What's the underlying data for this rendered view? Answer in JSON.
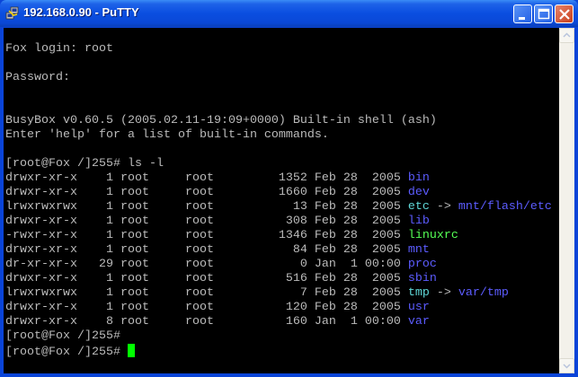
{
  "window": {
    "title": "192.168.0.90 - PuTTY"
  },
  "colors": {
    "text": "#bbbbbb",
    "dir": "#5c5cff",
    "link": "#5fd7d7",
    "exec": "#55ff55",
    "cursor": "#00ff00"
  },
  "terminal": {
    "lines": [
      [],
      [
        {
          "t": "Fox login: root"
        }
      ],
      [],
      [
        {
          "t": "Password:"
        }
      ],
      [],
      [],
      [
        {
          "t": "BusyBox v0.60.5 (2005.02.11-19:09+0000) Built-in shell (ash)"
        }
      ],
      [
        {
          "t": "Enter 'help' for a list of built-in commands."
        }
      ],
      [],
      [
        {
          "t": "[root@Fox /]255# ls -l"
        }
      ],
      [
        {
          "t": "drwxr-xr-x    1 root     root         1352 Feb 28  2005 "
        },
        {
          "t": "bin",
          "c": "dir"
        }
      ],
      [
        {
          "t": "drwxr-xr-x    1 root     root         1660 Feb 28  2005 "
        },
        {
          "t": "dev",
          "c": "dir"
        }
      ],
      [
        {
          "t": "lrwxrwxrwx    1 root     root           13 Feb 28  2005 "
        },
        {
          "t": "etc",
          "c": "link"
        },
        {
          "t": " -> "
        },
        {
          "t": "mnt/flash/etc",
          "c": "dir"
        }
      ],
      [
        {
          "t": "drwxr-xr-x    1 root     root          308 Feb 28  2005 "
        },
        {
          "t": "lib",
          "c": "dir"
        }
      ],
      [
        {
          "t": "-rwxr-xr-x    1 root     root         1346 Feb 28  2005 "
        },
        {
          "t": "linuxrc",
          "c": "exec"
        }
      ],
      [
        {
          "t": "drwxr-xr-x    1 root     root           84 Feb 28  2005 "
        },
        {
          "t": "mnt",
          "c": "dir"
        }
      ],
      [
        {
          "t": "dr-xr-xr-x   29 root     root            0 Jan  1 00:00 "
        },
        {
          "t": "proc",
          "c": "dir"
        }
      ],
      [
        {
          "t": "drwxr-xr-x    1 root     root          516 Feb 28  2005 "
        },
        {
          "t": "sbin",
          "c": "dir"
        }
      ],
      [
        {
          "t": "lrwxrwxrwx    1 root     root            7 Feb 28  2005 "
        },
        {
          "t": "tmp",
          "c": "link"
        },
        {
          "t": " -> "
        },
        {
          "t": "var/tmp",
          "c": "dir"
        }
      ],
      [
        {
          "t": "drwxr-xr-x    1 root     root          120 Feb 28  2005 "
        },
        {
          "t": "usr",
          "c": "dir"
        }
      ],
      [
        {
          "t": "drwxr-xr-x    8 root     root          160 Jan  1 00:00 "
        },
        {
          "t": "var",
          "c": "dir"
        }
      ],
      [
        {
          "t": "[root@Fox /]255#"
        }
      ],
      [
        {
          "t": "[root@Fox /]255# "
        },
        {
          "cursor": true
        }
      ]
    ]
  }
}
